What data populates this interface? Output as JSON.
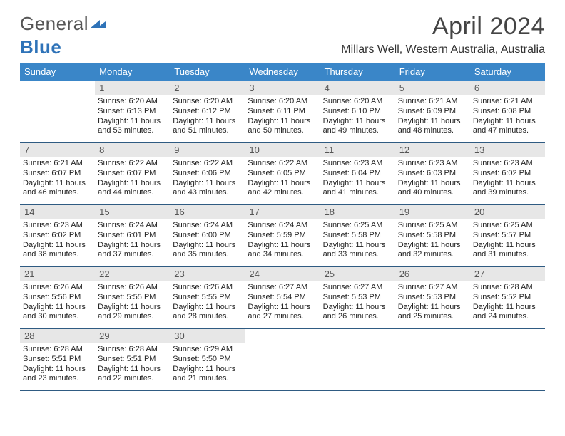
{
  "logo": {
    "text1": "General",
    "text2": "Blue"
  },
  "title": {
    "month": "April 2024",
    "location": "Millars Well, Western Australia, Australia"
  },
  "colors": {
    "header_bg": "#3a86c8",
    "rule": "#2f5b82",
    "daynum_bg": "#e7e7e7"
  },
  "daysOfWeek": [
    "Sunday",
    "Monday",
    "Tuesday",
    "Wednesday",
    "Thursday",
    "Friday",
    "Saturday"
  ],
  "weeks": [
    [
      {
        "blank": true
      },
      {
        "n": "1",
        "sr": "Sunrise: 6:20 AM",
        "ss": "Sunset: 6:13 PM",
        "dl": "Daylight: 11 hours and 53 minutes."
      },
      {
        "n": "2",
        "sr": "Sunrise: 6:20 AM",
        "ss": "Sunset: 6:12 PM",
        "dl": "Daylight: 11 hours and 51 minutes."
      },
      {
        "n": "3",
        "sr": "Sunrise: 6:20 AM",
        "ss": "Sunset: 6:11 PM",
        "dl": "Daylight: 11 hours and 50 minutes."
      },
      {
        "n": "4",
        "sr": "Sunrise: 6:20 AM",
        "ss": "Sunset: 6:10 PM",
        "dl": "Daylight: 11 hours and 49 minutes."
      },
      {
        "n": "5",
        "sr": "Sunrise: 6:21 AM",
        "ss": "Sunset: 6:09 PM",
        "dl": "Daylight: 11 hours and 48 minutes."
      },
      {
        "n": "6",
        "sr": "Sunrise: 6:21 AM",
        "ss": "Sunset: 6:08 PM",
        "dl": "Daylight: 11 hours and 47 minutes."
      }
    ],
    [
      {
        "n": "7",
        "sr": "Sunrise: 6:21 AM",
        "ss": "Sunset: 6:07 PM",
        "dl": "Daylight: 11 hours and 46 minutes."
      },
      {
        "n": "8",
        "sr": "Sunrise: 6:22 AM",
        "ss": "Sunset: 6:07 PM",
        "dl": "Daylight: 11 hours and 44 minutes."
      },
      {
        "n": "9",
        "sr": "Sunrise: 6:22 AM",
        "ss": "Sunset: 6:06 PM",
        "dl": "Daylight: 11 hours and 43 minutes."
      },
      {
        "n": "10",
        "sr": "Sunrise: 6:22 AM",
        "ss": "Sunset: 6:05 PM",
        "dl": "Daylight: 11 hours and 42 minutes."
      },
      {
        "n": "11",
        "sr": "Sunrise: 6:23 AM",
        "ss": "Sunset: 6:04 PM",
        "dl": "Daylight: 11 hours and 41 minutes."
      },
      {
        "n": "12",
        "sr": "Sunrise: 6:23 AM",
        "ss": "Sunset: 6:03 PM",
        "dl": "Daylight: 11 hours and 40 minutes."
      },
      {
        "n": "13",
        "sr": "Sunrise: 6:23 AM",
        "ss": "Sunset: 6:02 PM",
        "dl": "Daylight: 11 hours and 39 minutes."
      }
    ],
    [
      {
        "n": "14",
        "sr": "Sunrise: 6:23 AM",
        "ss": "Sunset: 6:02 PM",
        "dl": "Daylight: 11 hours and 38 minutes."
      },
      {
        "n": "15",
        "sr": "Sunrise: 6:24 AM",
        "ss": "Sunset: 6:01 PM",
        "dl": "Daylight: 11 hours and 37 minutes."
      },
      {
        "n": "16",
        "sr": "Sunrise: 6:24 AM",
        "ss": "Sunset: 6:00 PM",
        "dl": "Daylight: 11 hours and 35 minutes."
      },
      {
        "n": "17",
        "sr": "Sunrise: 6:24 AM",
        "ss": "Sunset: 5:59 PM",
        "dl": "Daylight: 11 hours and 34 minutes."
      },
      {
        "n": "18",
        "sr": "Sunrise: 6:25 AM",
        "ss": "Sunset: 5:58 PM",
        "dl": "Daylight: 11 hours and 33 minutes."
      },
      {
        "n": "19",
        "sr": "Sunrise: 6:25 AM",
        "ss": "Sunset: 5:58 PM",
        "dl": "Daylight: 11 hours and 32 minutes."
      },
      {
        "n": "20",
        "sr": "Sunrise: 6:25 AM",
        "ss": "Sunset: 5:57 PM",
        "dl": "Daylight: 11 hours and 31 minutes."
      }
    ],
    [
      {
        "n": "21",
        "sr": "Sunrise: 6:26 AM",
        "ss": "Sunset: 5:56 PM",
        "dl": "Daylight: 11 hours and 30 minutes."
      },
      {
        "n": "22",
        "sr": "Sunrise: 6:26 AM",
        "ss": "Sunset: 5:55 PM",
        "dl": "Daylight: 11 hours and 29 minutes."
      },
      {
        "n": "23",
        "sr": "Sunrise: 6:26 AM",
        "ss": "Sunset: 5:55 PM",
        "dl": "Daylight: 11 hours and 28 minutes."
      },
      {
        "n": "24",
        "sr": "Sunrise: 6:27 AM",
        "ss": "Sunset: 5:54 PM",
        "dl": "Daylight: 11 hours and 27 minutes."
      },
      {
        "n": "25",
        "sr": "Sunrise: 6:27 AM",
        "ss": "Sunset: 5:53 PM",
        "dl": "Daylight: 11 hours and 26 minutes."
      },
      {
        "n": "26",
        "sr": "Sunrise: 6:27 AM",
        "ss": "Sunset: 5:53 PM",
        "dl": "Daylight: 11 hours and 25 minutes."
      },
      {
        "n": "27",
        "sr": "Sunrise: 6:28 AM",
        "ss": "Sunset: 5:52 PM",
        "dl": "Daylight: 11 hours and 24 minutes."
      }
    ],
    [
      {
        "n": "28",
        "sr": "Sunrise: 6:28 AM",
        "ss": "Sunset: 5:51 PM",
        "dl": "Daylight: 11 hours and 23 minutes."
      },
      {
        "n": "29",
        "sr": "Sunrise: 6:28 AM",
        "ss": "Sunset: 5:51 PM",
        "dl": "Daylight: 11 hours and 22 minutes."
      },
      {
        "n": "30",
        "sr": "Sunrise: 6:29 AM",
        "ss": "Sunset: 5:50 PM",
        "dl": "Daylight: 11 hours and 21 minutes."
      },
      {
        "blank": true
      },
      {
        "blank": true
      },
      {
        "blank": true
      },
      {
        "blank": true
      }
    ]
  ]
}
